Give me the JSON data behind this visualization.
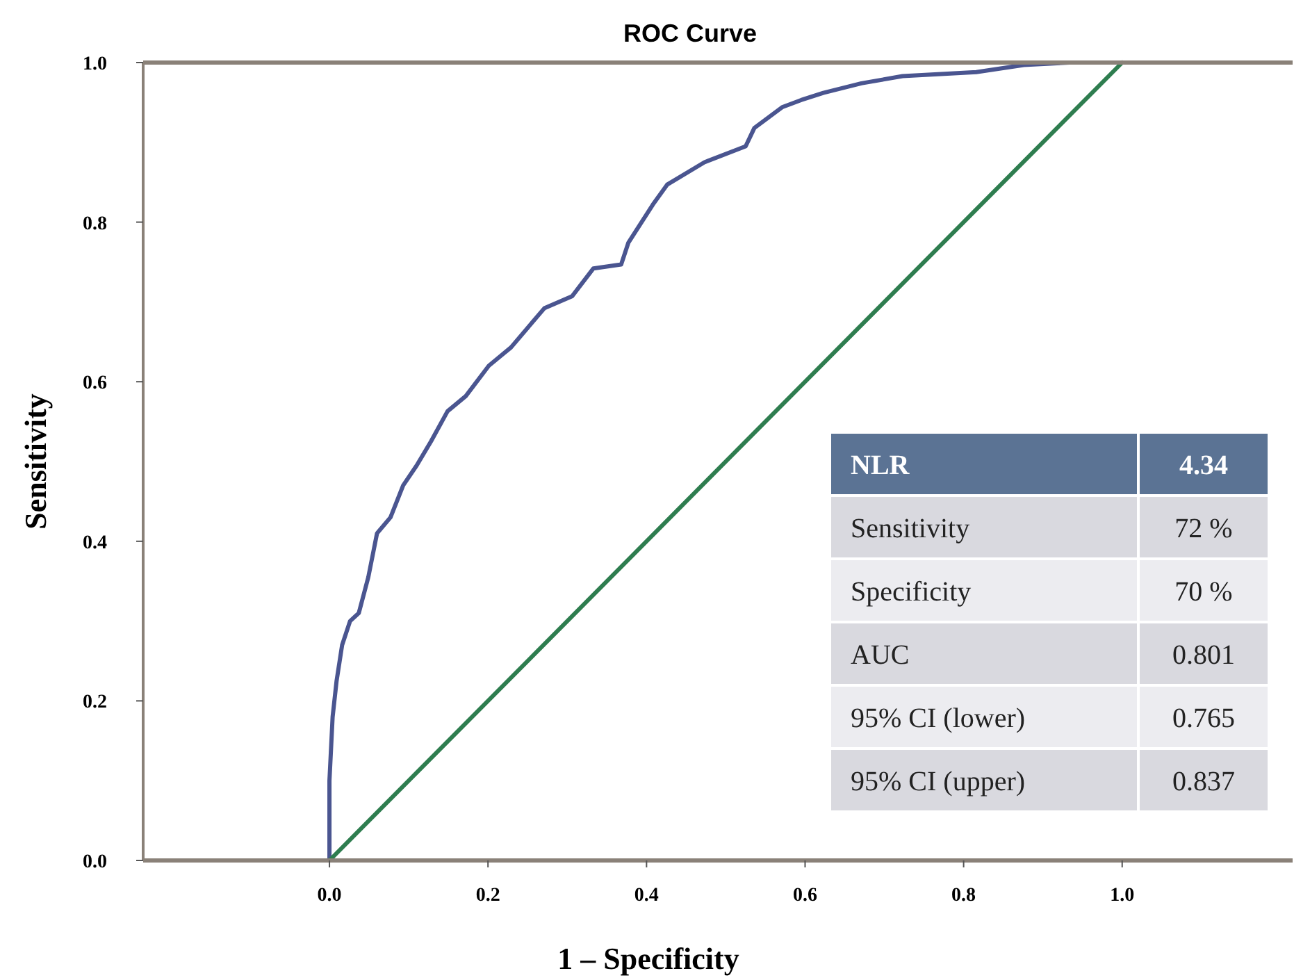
{
  "chart_data": {
    "type": "line",
    "title": "ROC Curve",
    "xlabel": "1 – Specificity",
    "ylabel": "Sensitivity",
    "xlim": [
      -0.235,
      1.215
    ],
    "ylim": [
      0,
      1
    ],
    "xticks": [
      {
        "value": 0,
        "label": "0.0"
      },
      0.2,
      0.4,
      0.6,
      0.8,
      {
        "value": 1,
        "label": "1.0"
      }
    ],
    "yticks": [
      {
        "value": 0,
        "label": "0.0"
      },
      0.2,
      0.4,
      0.6,
      0.8,
      {
        "value": 1,
        "label": "1.0"
      }
    ],
    "series": [
      {
        "color": "#4a5590",
        "x": [
          0,
          0,
          0.004,
          0.009,
          0.016,
          0.026,
          0.037,
          0.049,
          0.06,
          0.077,
          0.093,
          0.11,
          0.128,
          0.149,
          0.172,
          0.201,
          0.229,
          0.271,
          0.306,
          0.333,
          0.368,
          0.377,
          0.408,
          0.426,
          0.473,
          0.525,
          0.536,
          0.571,
          0.595,
          0.623,
          0.671,
          0.723,
          0.816,
          0.876,
          0.933,
          1
        ],
        "values": [
          0,
          0.1,
          0.18,
          0.225,
          0.27,
          0.3,
          0.31,
          0.355,
          0.41,
          0.43,
          0.47,
          0.495,
          0.525,
          0.563,
          0.582,
          0.62,
          0.643,
          0.692,
          0.707,
          0.742,
          0.747,
          0.774,
          0.822,
          0.847,
          0.875,
          0.895,
          0.918,
          0.944,
          0.953,
          0.962,
          0.974,
          0.983,
          0.988,
          0.997,
          1,
          1
        ]
      },
      {
        "color": "#2e7d4f",
        "x": [
          0,
          1
        ],
        "values": [
          0,
          1
        ]
      }
    ],
    "annotations": [
      "NLR",
      "4.34",
      "Sensitivity",
      "72 %",
      "Specificity",
      "70 %",
      "AUC",
      "0.801",
      "95% CI (lower)",
      "0.765",
      "95% CI (upper)",
      "0.837"
    ]
  }
}
